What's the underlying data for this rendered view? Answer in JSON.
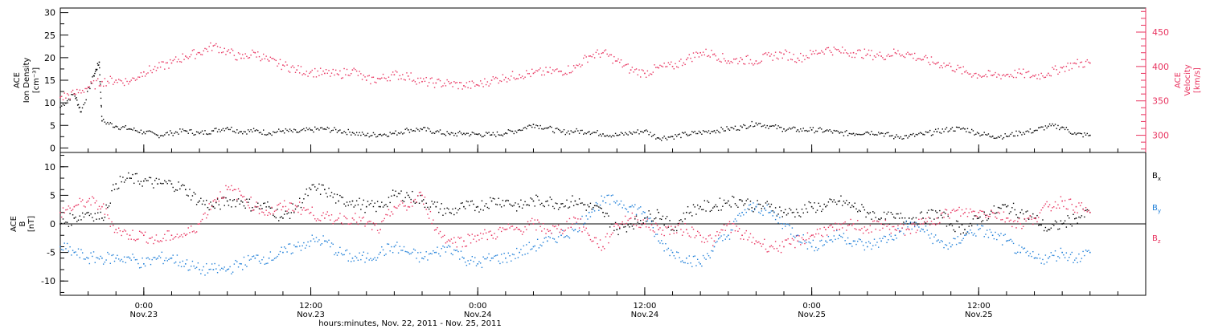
{
  "xaxis": {
    "title": "hours:minutes, Nov. 22, 2011 - Nov. 25, 2011",
    "range_hours": [
      -6,
      72
    ],
    "ticks": [
      {
        "h": 0,
        "time": "0:00",
        "date": "Nov.23"
      },
      {
        "h": 12,
        "time": "12:00",
        "date": "Nov.23"
      },
      {
        "h": 24,
        "time": "0:00",
        "date": "Nov.24"
      },
      {
        "h": 36,
        "time": "12:00",
        "date": "Nov.24"
      },
      {
        "h": 48,
        "time": "0:00",
        "date": "Nov.25"
      },
      {
        "h": 60,
        "time": "12:00",
        "date": "Nov.25"
      }
    ]
  },
  "colors": {
    "black": "#000000",
    "pink": "#e8335f",
    "blue": "#1f7fd8"
  },
  "chart_data": [
    {
      "type": "scatter",
      "panel": "top",
      "ylabel_left": [
        "ACE",
        "Ion Density",
        "[cm⁻³]"
      ],
      "ylabel_right": [
        "ACE",
        "Velocity",
        "[km/s]"
      ],
      "ylim_left": [
        -1,
        31
      ],
      "ylim_right": [
        275,
        485
      ],
      "yticks_left": [
        0,
        5,
        10,
        15,
        20,
        25,
        30
      ],
      "yticks_right": [
        300,
        350,
        400,
        450
      ],
      "series": [
        {
          "axis": "left",
          "color": "black",
          "x": [
            -6,
            -5,
            -4.5,
            -3.6,
            -3.2,
            -3,
            -2,
            -1,
            0,
            1,
            2,
            3,
            4,
            5,
            6,
            7,
            8,
            9,
            10,
            11,
            12,
            13,
            14,
            15,
            16,
            17,
            18,
            19,
            20,
            21,
            22,
            23,
            24,
            25,
            26,
            27,
            28,
            29,
            30,
            31,
            32,
            33,
            34,
            35,
            36,
            37,
            38,
            39,
            40,
            41,
            42,
            43,
            44,
            45,
            46,
            47,
            48,
            49,
            50,
            51,
            52,
            53,
            54,
            55,
            56,
            57,
            58,
            59,
            60,
            61,
            62,
            63,
            64,
            65,
            66,
            67,
            68
          ],
          "y": [
            9,
            12,
            8,
            16,
            19,
            6,
            4.8,
            4.2,
            3.5,
            2.8,
            3.3,
            3.8,
            3.2,
            3.8,
            4.5,
            3.6,
            3.8,
            3.3,
            3.8,
            3.5,
            4,
            4.2,
            3.8,
            3.4,
            2.8,
            3,
            3.2,
            4,
            4.1,
            3.6,
            3,
            3.2,
            3,
            2.9,
            3.3,
            4,
            5.2,
            4.4,
            3.5,
            3.7,
            3.6,
            3.1,
            2.8,
            3.3,
            3.8,
            2.2,
            2.5,
            3,
            3.4,
            3.8,
            4.2,
            4.6,
            5.5,
            4.8,
            4.2,
            4,
            4,
            3.8,
            3.3,
            3.2,
            3.5,
            3.3,
            2.4,
            2.6,
            3,
            3.6,
            4.2,
            4.2,
            3.2,
            2.6,
            2.6,
            3.4,
            3.8,
            4.8,
            4.6,
            3,
            2.8
          ]
        },
        {
          "axis": "right",
          "color": "pink",
          "x": [
            -6,
            -5,
            -4,
            -3,
            -2,
            -1,
            0,
            1,
            2,
            3,
            4,
            5,
            6,
            7,
            8,
            9,
            10,
            11,
            12,
            13,
            14,
            15,
            16,
            17,
            18,
            19,
            20,
            21,
            22,
            23,
            24,
            25,
            26,
            27,
            28,
            29,
            30,
            31,
            32,
            33,
            34,
            35,
            36,
            37,
            38,
            39,
            40,
            41,
            42,
            43,
            44,
            45,
            46,
            47,
            48,
            49,
            50,
            51,
            52,
            53,
            54,
            55,
            56,
            57,
            58,
            59,
            60,
            61,
            62,
            63,
            64,
            65,
            66,
            67,
            68
          ],
          "y": [
            355,
            360,
            370,
            378,
            380,
            378,
            392,
            398,
            405,
            415,
            420,
            430,
            422,
            412,
            420,
            408,
            402,
            395,
            392,
            390,
            388,
            395,
            380,
            382,
            388,
            386,
            378,
            376,
            375,
            372,
            373,
            380,
            384,
            388,
            390,
            392,
            393,
            398,
            415,
            420,
            408,
            395,
            390,
            398,
            400,
            410,
            420,
            418,
            408,
            410,
            408,
            415,
            418,
            412,
            418,
            425,
            422,
            420,
            418,
            415,
            420,
            418,
            410,
            405,
            400,
            392,
            388,
            387,
            388,
            390,
            386,
            390,
            398,
            404,
            405
          ]
        }
      ]
    },
    {
      "type": "scatter",
      "panel": "bottom",
      "ylabel_left": [
        "ACE",
        "B",
        "[nT]"
      ],
      "ylim": [
        -12.5,
        12.5
      ],
      "yticks": [
        -10,
        -5,
        0,
        5,
        10
      ],
      "series": [
        {
          "name": "Bx",
          "color": "black",
          "x": [
            -6,
            -5,
            -4,
            -3,
            -2,
            -1,
            0,
            1,
            2,
            3,
            4,
            5,
            6,
            7,
            8,
            9,
            10,
            11,
            12,
            13,
            14,
            15,
            16,
            17,
            18,
            19,
            20,
            21,
            22,
            23,
            24,
            25,
            26,
            27,
            28,
            29,
            30,
            31,
            32,
            33,
            34,
            35,
            36,
            37,
            38,
            39,
            40,
            41,
            42,
            43,
            44,
            45,
            46,
            47,
            48,
            49,
            50,
            51,
            52,
            53,
            54,
            55,
            56,
            57,
            58,
            59,
            60,
            61,
            62,
            63,
            64,
            65,
            66,
            67,
            68
          ],
          "y": [
            0,
            1,
            2,
            1,
            7,
            8,
            7.5,
            7,
            7,
            6,
            4,
            3,
            4,
            4,
            3,
            3,
            1,
            3,
            6,
            6,
            4,
            4,
            3,
            3,
            5,
            5,
            4,
            3,
            2,
            3,
            3,
            4,
            4,
            3,
            4,
            4,
            3.5,
            4,
            3,
            2,
            -1,
            0,
            1,
            2,
            -1,
            2,
            3,
            3,
            4,
            4,
            3,
            3,
            2,
            2,
            3,
            3,
            4,
            3,
            2,
            1,
            1,
            1,
            1,
            2,
            0,
            -1,
            1,
            2,
            3,
            2,
            1,
            -1,
            0,
            1,
            2
          ]
        },
        {
          "name": "By",
          "color": "blue",
          "x": [
            -6,
            -5,
            -4,
            -3,
            -2,
            -1,
            0,
            1,
            2,
            3,
            4,
            5,
            6,
            7,
            8,
            9,
            10,
            11,
            12,
            13,
            14,
            15,
            16,
            17,
            18,
            19,
            20,
            21,
            22,
            23,
            24,
            25,
            26,
            27,
            28,
            29,
            30,
            31,
            32,
            33,
            34,
            35,
            36,
            37,
            38,
            39,
            40,
            41,
            42,
            43,
            44,
            45,
            46,
            47,
            48,
            49,
            50,
            51,
            52,
            53,
            54,
            55,
            56,
            57,
            58,
            59,
            60,
            61,
            62,
            63,
            64,
            65,
            66,
            67,
            68
          ],
          "y": [
            -4,
            -5,
            -6,
            -6,
            -6,
            -6,
            -7,
            -6,
            -6,
            -7,
            -8,
            -8,
            -8,
            -7,
            -6,
            -6,
            -5,
            -4,
            -3,
            -3,
            -5,
            -6,
            -6,
            -5,
            -4,
            -5,
            -6,
            -5,
            -4,
            -6,
            -7,
            -6,
            -6,
            -5,
            -4,
            -3,
            -2,
            -1,
            2,
            4,
            4,
            3,
            2,
            -3,
            -5,
            -6,
            -7,
            -4,
            -2,
            2,
            3,
            2,
            0,
            -2,
            -4,
            -3,
            -2,
            -3,
            -4,
            -3,
            -2,
            0,
            -1,
            -3,
            -4,
            -2,
            -1,
            -2,
            -3,
            -5,
            -6,
            -6,
            -5,
            -6,
            -5
          ]
        },
        {
          "name": "Bz",
          "color": "pink",
          "x": [
            -6,
            -5,
            -4,
            -3,
            -2,
            -1,
            0,
            1,
            2,
            3,
            4,
            5,
            6,
            7,
            8,
            9,
            10,
            11,
            12,
            13,
            14,
            15,
            16,
            17,
            18,
            19,
            20,
            21,
            22,
            23,
            24,
            25,
            26,
            27,
            28,
            29,
            30,
            31,
            32,
            33,
            34,
            35,
            36,
            37,
            38,
            39,
            40,
            41,
            42,
            43,
            44,
            45,
            46,
            47,
            48,
            49,
            50,
            51,
            52,
            53,
            54,
            55,
            56,
            57,
            58,
            59,
            60,
            61,
            62,
            63,
            64,
            65,
            66,
            67,
            68
          ],
          "y": [
            2,
            3,
            4,
            3,
            -1,
            -2,
            -2,
            -3,
            -2,
            -2,
            0,
            4,
            6,
            5,
            3,
            2,
            3,
            3,
            2,
            1,
            1,
            1,
            0,
            -1,
            3,
            3,
            5,
            -1,
            -3,
            -3,
            -2,
            -2,
            -1,
            -1,
            0,
            -1,
            -1,
            1,
            -2,
            -4,
            0,
            1,
            0,
            -1,
            -1,
            -1,
            -2,
            -3,
            0,
            -2,
            -3,
            -4,
            -4,
            -3,
            -2,
            -1,
            -1,
            0,
            -1,
            0,
            -1,
            -1,
            0,
            1,
            2,
            2,
            2,
            2,
            1,
            0,
            1,
            3,
            4,
            3,
            2
          ]
        }
      ]
    }
  ]
}
